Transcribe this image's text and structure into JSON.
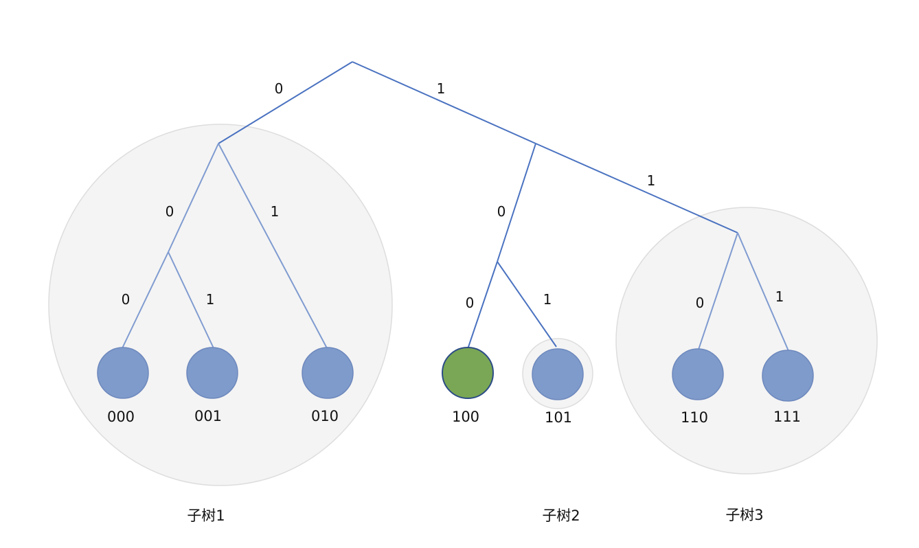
{
  "edge_labels": {
    "root_left": "0",
    "root_right": "1",
    "l_left": "0",
    "l_right": "1",
    "ll_left": "0",
    "ll_right": "1",
    "r_left": "0",
    "r_right": "1",
    "rl_left": "0",
    "rl_right": "1",
    "rr_left": "0",
    "rr_right": "1"
  },
  "leaves": [
    "000",
    "001",
    "010",
    "100",
    "101",
    "110",
    "111"
  ],
  "subtrees": [
    "子树1",
    "子树2",
    "子树3"
  ],
  "colors": {
    "leaf": "#7f9bcb",
    "highlight_leaf": "#7aa755",
    "edge": "#4a72c0",
    "region": "#f4f4f4"
  }
}
